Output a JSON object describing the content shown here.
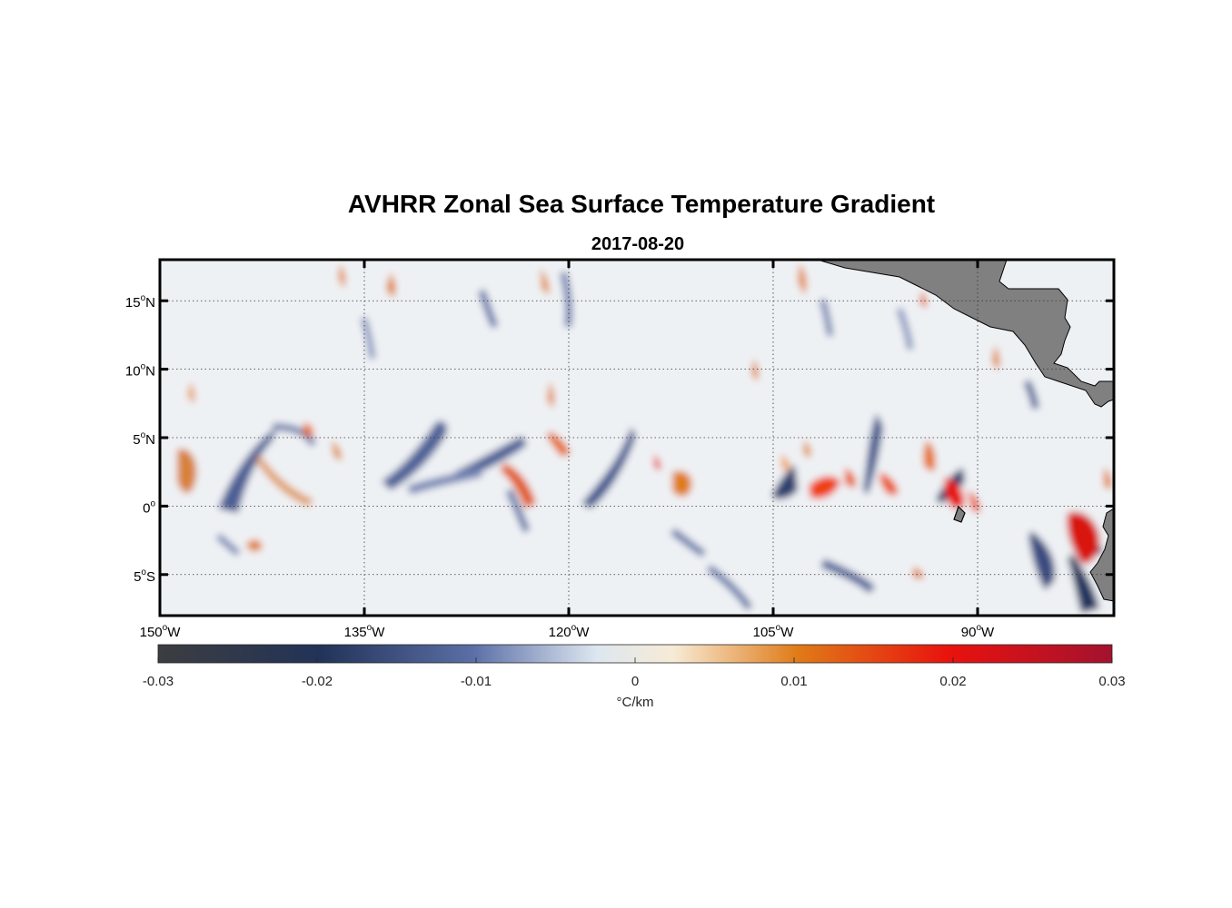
{
  "title": "AVHRR Zonal Sea Surface Temperature Gradient",
  "subtitle": "2017-08-20",
  "map": {
    "lon_range": [
      -150,
      -80
    ],
    "lat_range": [
      -8,
      18
    ],
    "lon_ticks": [
      {
        "value": -150,
        "deg": "150",
        "hemi": "W"
      },
      {
        "value": -135,
        "deg": "135",
        "hemi": "W"
      },
      {
        "value": -120,
        "deg": "120",
        "hemi": "W"
      },
      {
        "value": -105,
        "deg": "105",
        "hemi": "W"
      },
      {
        "value": -90,
        "deg": "90",
        "hemi": "W"
      }
    ],
    "lat_ticks": [
      {
        "value": 15,
        "deg": "15",
        "hemi": "N"
      },
      {
        "value": 10,
        "deg": "10",
        "hemi": "N"
      },
      {
        "value": 5,
        "deg": "5",
        "hemi": "N"
      },
      {
        "value": 0,
        "deg": "0",
        "hemi": ""
      },
      {
        "value": -5,
        "deg": "5",
        "hemi": "S"
      }
    ],
    "grid": true,
    "land_color": "#808080"
  },
  "colorbar": {
    "min": -0.03,
    "max": 0.03,
    "ticks": [
      "-0.03",
      "-0.02",
      "-0.01",
      "0",
      "0.01",
      "0.02",
      "0.03"
    ],
    "label": "°C/km",
    "colors": [
      "#3c3d40",
      "#223358",
      "#5b6fa6",
      "#dde7f0",
      "#f7ebd6",
      "#e07b18",
      "#e8120e",
      "#a3122f"
    ]
  }
}
